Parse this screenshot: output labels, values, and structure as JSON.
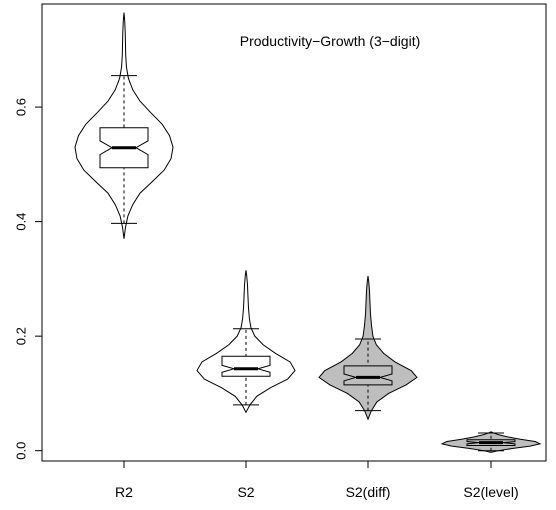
{
  "chart_data": {
    "type": "violin",
    "title": "Productivity−Growth (3−digit)",
    "xlabel": "",
    "ylabel": "",
    "ylim": [
      -0.018,
      0.78
    ],
    "yticks": [
      "0.0",
      "0.2",
      "0.4",
      "0.6"
    ],
    "categories": [
      "R2",
      "S2",
      "S2(diff)",
      "S2(level)"
    ],
    "series": [
      {
        "category": "R2",
        "fill": "#ffffff",
        "min": 0.37,
        "max": 0.765,
        "whisker_low": 0.397,
        "whisker_high": 0.655,
        "q1": 0.494,
        "median": 0.529,
        "q3": 0.564,
        "notch_low": 0.517,
        "notch_high": 0.541,
        "density": [
          [
            0.37,
            0.0
          ],
          [
            0.39,
            0.03
          ],
          [
            0.41,
            0.08
          ],
          [
            0.43,
            0.18
          ],
          [
            0.45,
            0.33
          ],
          [
            0.47,
            0.58
          ],
          [
            0.49,
            0.82
          ],
          [
            0.51,
            0.96
          ],
          [
            0.53,
            1.0
          ],
          [
            0.55,
            0.93
          ],
          [
            0.57,
            0.78
          ],
          [
            0.59,
            0.55
          ],
          [
            0.61,
            0.33
          ],
          [
            0.63,
            0.18
          ],
          [
            0.65,
            0.09
          ],
          [
            0.67,
            0.05
          ],
          [
            0.69,
            0.035
          ],
          [
            0.71,
            0.03
          ],
          [
            0.73,
            0.025
          ],
          [
            0.75,
            0.015
          ],
          [
            0.765,
            0.0
          ]
        ]
      },
      {
        "category": "S2",
        "fill": "#ffffff",
        "min": 0.067,
        "max": 0.315,
        "whisker_low": 0.08,
        "whisker_high": 0.213,
        "q1": 0.13,
        "median": 0.143,
        "q3": 0.165,
        "notch_low": 0.137,
        "notch_high": 0.149,
        "density": [
          [
            0.067,
            0.0
          ],
          [
            0.08,
            0.08
          ],
          [
            0.095,
            0.22
          ],
          [
            0.11,
            0.5
          ],
          [
            0.125,
            0.85
          ],
          [
            0.14,
            1.0
          ],
          [
            0.155,
            0.9
          ],
          [
            0.17,
            0.6
          ],
          [
            0.185,
            0.35
          ],
          [
            0.2,
            0.18
          ],
          [
            0.215,
            0.1
          ],
          [
            0.23,
            0.07
          ],
          [
            0.25,
            0.05
          ],
          [
            0.27,
            0.04
          ],
          [
            0.29,
            0.03
          ],
          [
            0.305,
            0.015
          ],
          [
            0.315,
            0.0
          ]
        ]
      },
      {
        "category": "S2(diff)",
        "fill": "#bebebe",
        "min": 0.055,
        "max": 0.305,
        "whisker_low": 0.07,
        "whisker_high": 0.195,
        "q1": 0.115,
        "median": 0.128,
        "q3": 0.148,
        "notch_low": 0.122,
        "notch_high": 0.134,
        "density": [
          [
            0.055,
            0.0
          ],
          [
            0.07,
            0.07
          ],
          [
            0.085,
            0.18
          ],
          [
            0.1,
            0.42
          ],
          [
            0.115,
            0.78
          ],
          [
            0.128,
            1.0
          ],
          [
            0.14,
            0.88
          ],
          [
            0.155,
            0.55
          ],
          [
            0.17,
            0.32
          ],
          [
            0.185,
            0.17
          ],
          [
            0.2,
            0.1
          ],
          [
            0.22,
            0.07
          ],
          [
            0.24,
            0.05
          ],
          [
            0.26,
            0.04
          ],
          [
            0.28,
            0.03
          ],
          [
            0.295,
            0.015
          ],
          [
            0.305,
            0.0
          ]
        ]
      },
      {
        "category": "S2(level)",
        "fill": "#bebebe",
        "min": -0.003,
        "max": 0.033,
        "whisker_low": 0.0,
        "whisker_high": 0.031,
        "q1": 0.009,
        "median": 0.014,
        "q3": 0.019,
        "notch_low": 0.012,
        "notch_high": 0.016,
        "density": [
          [
            -0.003,
            0.0
          ],
          [
            0.0,
            0.15
          ],
          [
            0.004,
            0.45
          ],
          [
            0.008,
            0.8
          ],
          [
            0.012,
            1.0
          ],
          [
            0.016,
            0.9
          ],
          [
            0.02,
            0.6
          ],
          [
            0.024,
            0.35
          ],
          [
            0.028,
            0.15
          ],
          [
            0.031,
            0.05
          ],
          [
            0.033,
            0.0
          ]
        ]
      }
    ]
  }
}
